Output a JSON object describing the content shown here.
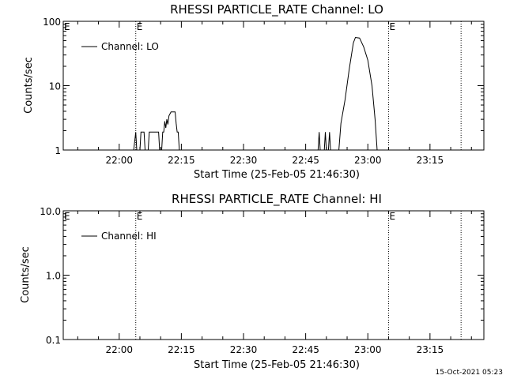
{
  "footer": {
    "timestamp": "15-Oct-2021 05:23"
  },
  "chart_data": [
    {
      "type": "line",
      "title": "RHESSI PARTICLE_RATE Channel: LO",
      "xlabel": "Start Time (25-Feb-05 21:46:30)",
      "ylabel": "Counts/sec",
      "y_scale": "log",
      "ylim": [
        1,
        100
      ],
      "xlim": [
        "21:46:30",
        "23:28:00"
      ],
      "x_tick_labels": [
        "22:00",
        "22:15",
        "22:30",
        "22:45",
        "23:00",
        "23:15"
      ],
      "y_tick_labels": [
        "1",
        "10",
        "100"
      ],
      "legend": {
        "entries": [
          "Channel: LO"
        ],
        "position": "top-left"
      },
      "event_markers": [
        {
          "time": "22:04:00",
          "label": "E"
        },
        {
          "time": "23:05:00",
          "label": "E"
        },
        {
          "time": "23:22:30",
          "label": ""
        }
      ],
      "series": [
        {
          "name": "Channel: LO",
          "points": [
            [
              "22:03:30",
              1
            ],
            [
              "22:04:00",
              1.9
            ],
            [
              "22:04:15",
              1
            ],
            [
              "22:05:00",
              1
            ],
            [
              "22:05:15",
              1.9
            ],
            [
              "22:06:00",
              1.9
            ],
            [
              "22:06:15",
              1
            ],
            [
              "22:07:00",
              1
            ],
            [
              "22:07:15",
              1.9
            ],
            [
              "22:09:30",
              1.9
            ],
            [
              "22:09:45",
              1
            ],
            [
              "22:10:15",
              1
            ],
            [
              "22:10:30",
              1.9
            ],
            [
              "22:10:45",
              1.9
            ],
            [
              "22:11:00",
              2.8
            ],
            [
              "22:11:15",
              2.2
            ],
            [
              "22:11:30",
              3.0
            ],
            [
              "22:11:45",
              2.5
            ],
            [
              "22:12:00",
              3.4
            ],
            [
              "22:12:30",
              3.9
            ],
            [
              "22:13:30",
              3.9
            ],
            [
              "22:13:45",
              2.6
            ],
            [
              "22:14:00",
              1.9
            ],
            [
              "22:14:15",
              1.9
            ],
            [
              "22:14:30",
              1
            ]
          ]
        },
        {
          "name": "Channel: LO",
          "points": [
            [
              "22:48:00",
              1
            ],
            [
              "22:48:15",
              1.9
            ],
            [
              "22:48:30",
              1
            ],
            [
              "22:49:30",
              1
            ],
            [
              "22:49:45",
              1.9
            ],
            [
              "22:50:00",
              1
            ],
            [
              "22:50:30",
              1
            ],
            [
              "22:50:45",
              1.9
            ],
            [
              "22:51:00",
              1
            ],
            [
              "22:53:00",
              1
            ],
            [
              "22:53:30",
              2.6
            ],
            [
              "22:54:30",
              6
            ],
            [
              "22:55:30",
              18
            ],
            [
              "22:56:30",
              46
            ],
            [
              "22:57:00",
              56
            ],
            [
              "22:58:00",
              55
            ],
            [
              "22:59:00",
              40
            ],
            [
              "23:00:00",
              25
            ],
            [
              "23:01:00",
              10
            ],
            [
              "23:01:45",
              3
            ],
            [
              "23:02:15",
              1
            ]
          ]
        }
      ]
    },
    {
      "type": "line",
      "title": "RHESSI PARTICLE_RATE Channel: HI",
      "xlabel": "Start Time (25-Feb-05 21:46:30)",
      "ylabel": "Counts/sec",
      "y_scale": "log",
      "ylim": [
        0.1,
        10
      ],
      "xlim": [
        "21:46:30",
        "23:28:00"
      ],
      "x_tick_labels": [
        "22:00",
        "22:15",
        "22:30",
        "22:45",
        "23:00",
        "23:15"
      ],
      "y_tick_labels": [
        "0.1",
        "1.0",
        "10.0"
      ],
      "legend": {
        "entries": [
          "Channel: HI"
        ],
        "position": "top-left"
      },
      "event_markers": [
        {
          "time": "22:04:00",
          "label": "E"
        },
        {
          "time": "23:05:00",
          "label": "E"
        },
        {
          "time": "23:22:30",
          "label": ""
        }
      ],
      "series": []
    }
  ]
}
